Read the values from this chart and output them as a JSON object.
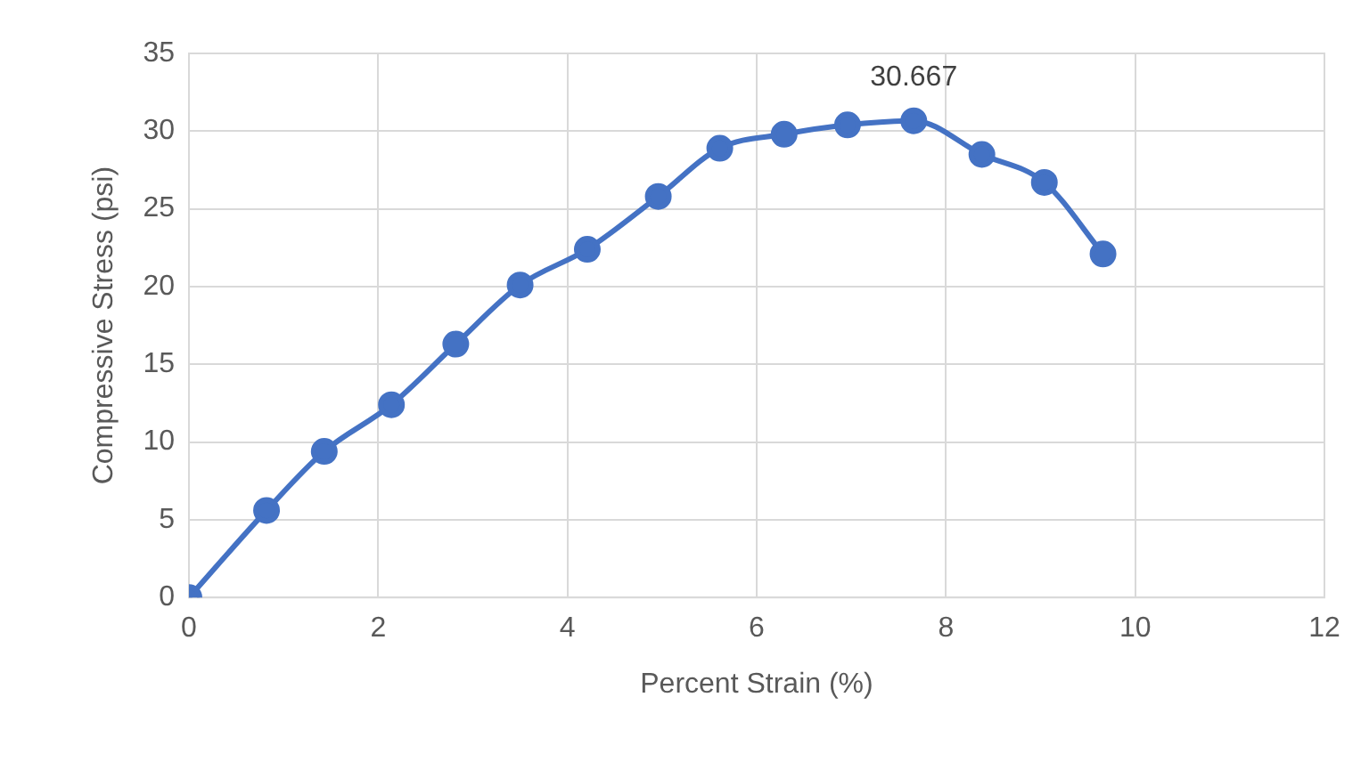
{
  "chart_data": {
    "type": "line",
    "xlabel": "Percent Strain (%)",
    "ylabel": "Compressive Stress (psi)",
    "series": [
      {
        "color": "#4472c4",
        "x": [
          0,
          0.82,
          1.43,
          2.14,
          2.82,
          3.5,
          4.21,
          4.96,
          5.61,
          6.29,
          6.96,
          7.66,
          8.38,
          9.04,
          9.66
        ],
        "values": [
          0,
          5.6,
          9.4,
          12.4,
          16.3,
          20.1,
          22.4,
          25.8,
          28.9,
          29.8,
          30.4,
          30.667,
          28.5,
          26.7,
          22.1
        ]
      }
    ],
    "xlim": [
      0,
      12
    ],
    "xticks": [
      0,
      2,
      4,
      6,
      8,
      10,
      12
    ],
    "ylim": [
      0,
      35
    ],
    "yticks": [
      0,
      5,
      10,
      15,
      20,
      25,
      30,
      35
    ],
    "grid": true,
    "legend": false,
    "marker": "circle",
    "line_style": "solid",
    "annotations": [
      {
        "text": "30.667",
        "x": 7.66,
        "y": 30.667
      }
    ]
  }
}
